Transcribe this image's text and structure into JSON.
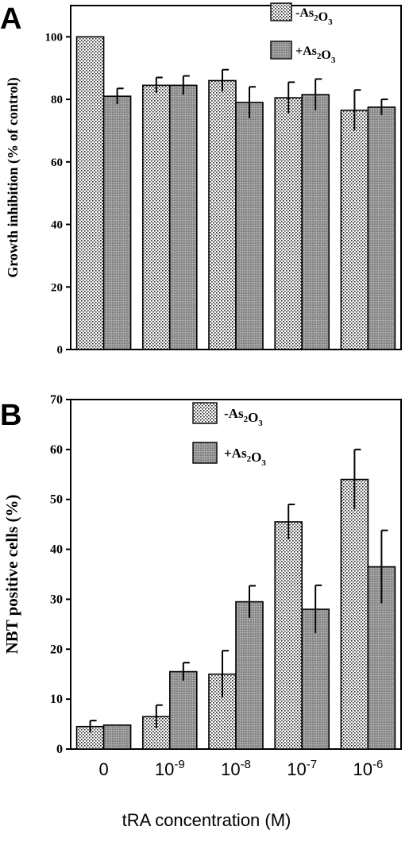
{
  "figure": {
    "x_axis_label": "tRA concentration (M)"
  },
  "chart_data": [
    {
      "panel": "A",
      "type": "bar",
      "ylabel": "Growth inhibition (% of control)",
      "ylim": [
        0,
        110
      ],
      "yticks": [
        0,
        20,
        40,
        60,
        80,
        100
      ],
      "categories": [
        "0",
        "1e-9",
        "1e-8",
        "1e-7",
        "1e-6"
      ],
      "legend": {
        "placement": "top-right"
      },
      "series": [
        {
          "name": "-As2O3",
          "pattern": "dots",
          "values": [
            100,
            84.5,
            86,
            80.5,
            76.5
          ],
          "errors": [
            0,
            2.5,
            3.5,
            5,
            6.5
          ]
        },
        {
          "name": "+As2O3",
          "pattern": "gray",
          "values": [
            81,
            84.5,
            79,
            81.5,
            77.5
          ],
          "errors": [
            2.5,
            3,
            5,
            5,
            2.5
          ]
        }
      ]
    },
    {
      "panel": "B",
      "type": "bar",
      "ylabel": "NBT positive cells (%)",
      "ylim": [
        0,
        70
      ],
      "yticks": [
        0,
        10,
        20,
        30,
        40,
        50,
        60,
        70
      ],
      "categories": [
        "0",
        "1e-9",
        "1e-8",
        "1e-7",
        "1e-6"
      ],
      "legend": {
        "placement": "top-center"
      },
      "series": [
        {
          "name": "-As2O3",
          "pattern": "dots",
          "values": [
            4.5,
            6.5,
            15,
            45.5,
            54
          ],
          "errors": [
            1.2,
            2.3,
            4.7,
            3.5,
            6
          ]
        },
        {
          "name": "+As2O3",
          "pattern": "gray",
          "values": [
            4.8,
            15.5,
            29.5,
            28,
            36.5
          ],
          "errors": [
            0,
            1.8,
            3.2,
            4.8,
            7.3
          ]
        }
      ]
    }
  ]
}
